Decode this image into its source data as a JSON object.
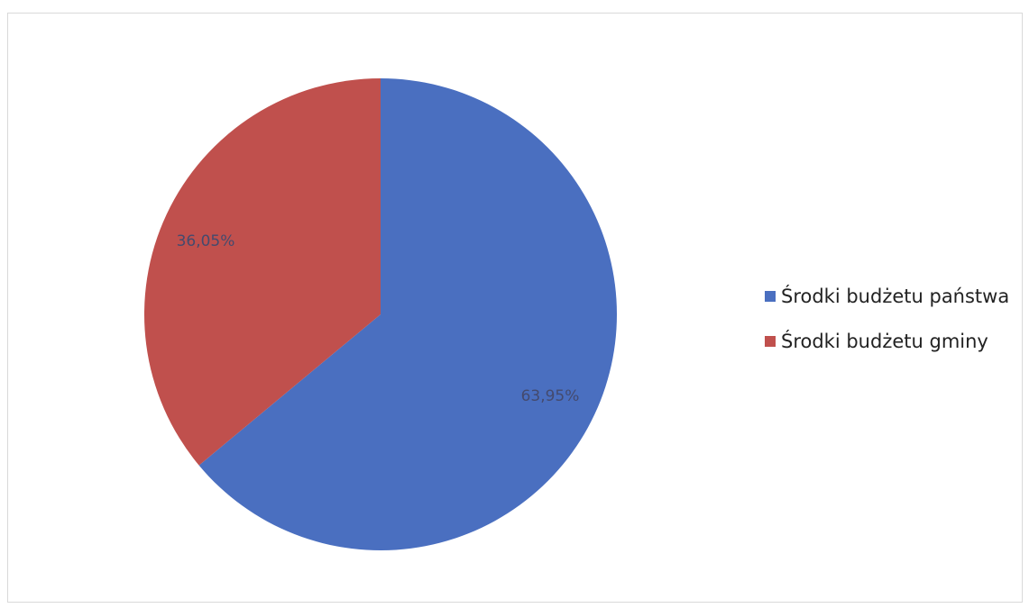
{
  "chart_data": {
    "type": "pie",
    "title": "",
    "slices": [
      {
        "name": "Środki budżetu państwa",
        "value": 63.95,
        "label": "63,95%",
        "color": "#4a6fc0"
      },
      {
        "name": "Środki budżetu gminy",
        "value": 36.05,
        "label": "36,05%",
        "color": "#c0504d"
      }
    ],
    "start_angle": "top",
    "direction": "clockwise",
    "legend_position": "right"
  }
}
